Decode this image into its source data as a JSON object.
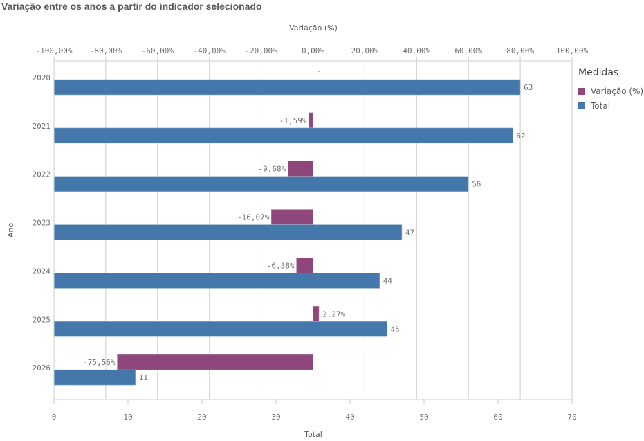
{
  "title": "Variação entre os anos a partir do indicador selecionado",
  "chart_data": {
    "type": "bar",
    "orientation": "horizontal",
    "title": "Variação entre os anos a partir do indicador selecionado",
    "categories": [
      "2020",
      "2021",
      "2022",
      "2023",
      "2024",
      "2025",
      "2026"
    ],
    "ylabel": "Ano",
    "series": [
      {
        "name": "Variação (%)",
        "color": "#8e477b",
        "axis": "top",
        "values": [
          null,
          -1.59,
          -9.68,
          -16.07,
          -6.38,
          2.27,
          -75.56
        ],
        "labels": [
          "-",
          "-1,59%",
          "-9,68%",
          "-16,07%",
          "-6,38%",
          "2,27%",
          "-75,56%"
        ]
      },
      {
        "name": "Total",
        "color": "#4477aa",
        "axis": "bottom",
        "values": [
          63,
          62,
          56,
          47,
          44,
          45,
          11
        ],
        "labels": [
          "63",
          "62",
          "56",
          "47",
          "44",
          "45",
          "11"
        ]
      }
    ],
    "top_axis": {
      "label": "Variação (%)",
      "range": [
        -100,
        100
      ],
      "ticks": [
        -100,
        -80,
        -60,
        -40,
        -20,
        0,
        20,
        40,
        60,
        80,
        100
      ],
      "tick_labels": [
        "-100,00%",
        "-80,00%",
        "-60,00%",
        "-40,00%",
        "-20,00%",
        "0,00%",
        "20,00%",
        "40,00%",
        "60,00%",
        "80,00%",
        "100,00%"
      ]
    },
    "bottom_axis": {
      "label": "Total",
      "range": [
        0,
        70
      ],
      "ticks": [
        0,
        10,
        20,
        30,
        40,
        50,
        60,
        70
      ],
      "tick_labels": [
        "0",
        "10",
        "20",
        "30",
        "40",
        "50",
        "60",
        "70"
      ]
    },
    "grid": true,
    "legend": {
      "title": "Medidas",
      "position": "right",
      "items": [
        {
          "label": "Variação (%)",
          "color": "#8e477b"
        },
        {
          "label": "Total",
          "color": "#4477aa"
        }
      ]
    }
  }
}
